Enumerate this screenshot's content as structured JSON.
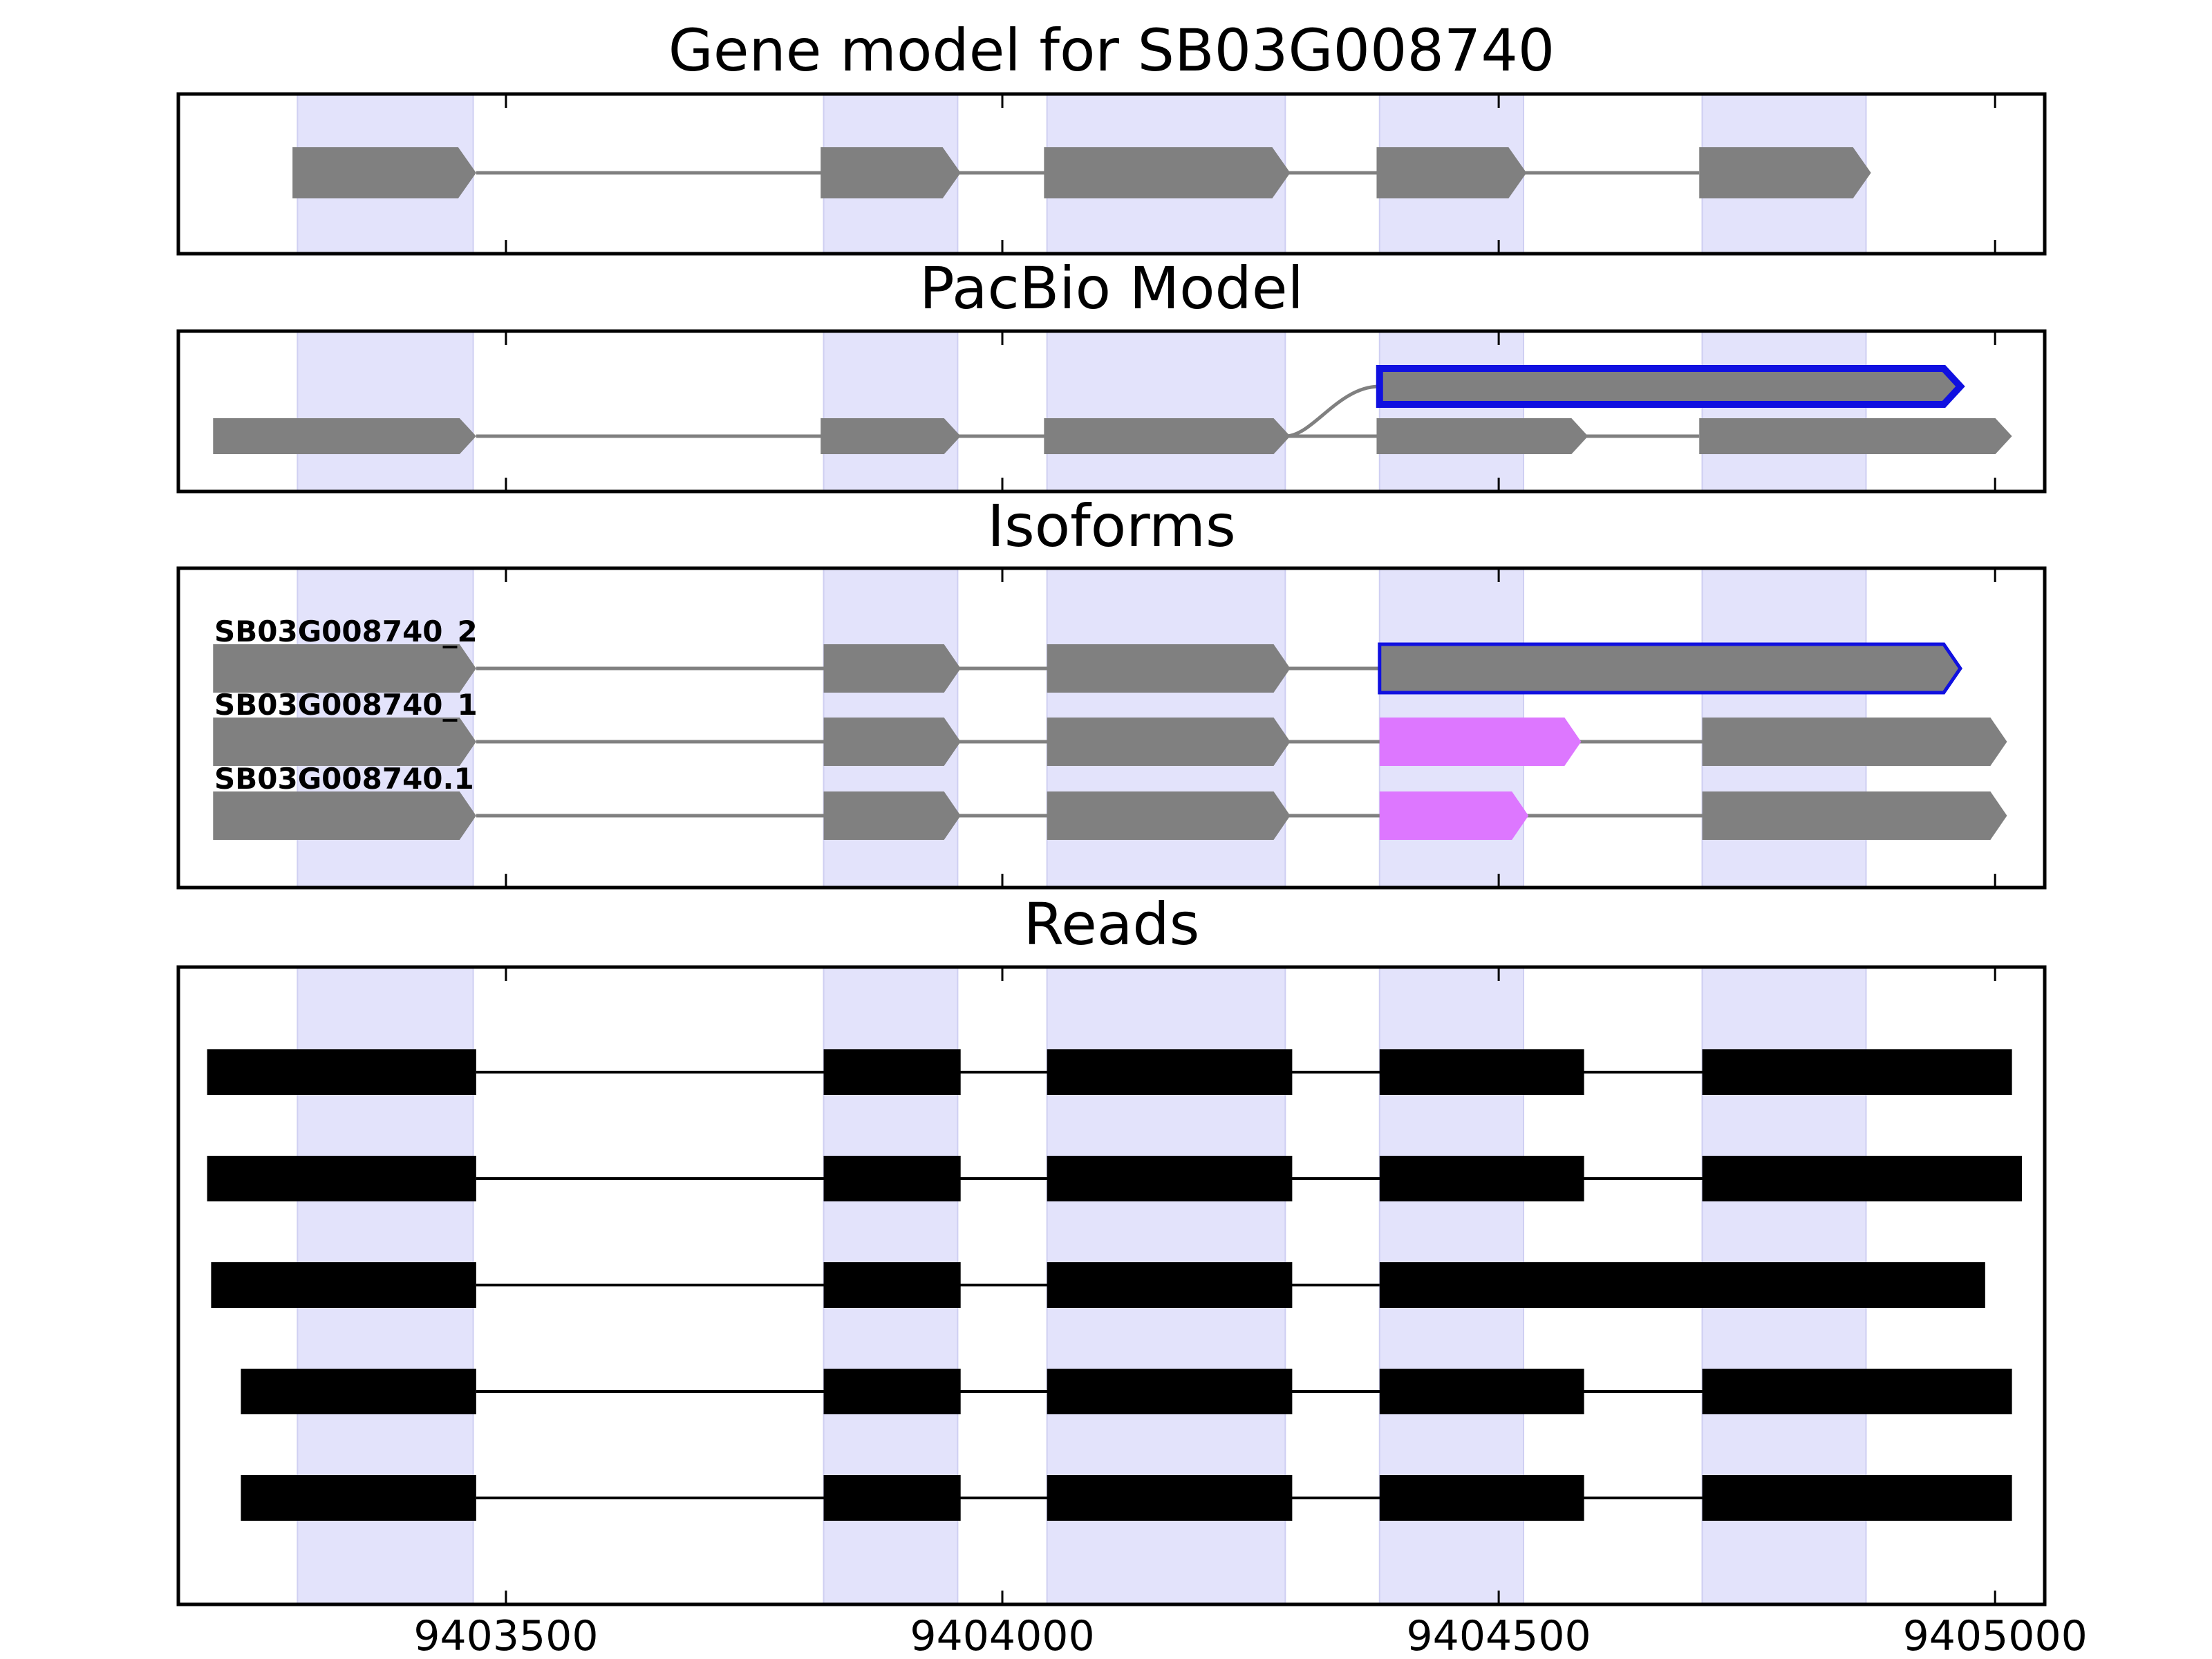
{
  "colors": {
    "exon_band": "#e3e3fb",
    "exon": "#808080",
    "intron": "#808080",
    "highlight_outline": "#1010e0",
    "alt_exon": "#dd77ff",
    "read": "#000000"
  },
  "x_axis": {
    "min": 9403170,
    "max": 9405050,
    "ticks": [
      9403500,
      9404000,
      9404500,
      9405000
    ],
    "tick_labels": [
      "9403500",
      "9404000",
      "9404500",
      "9405000"
    ]
  },
  "exon_bands": [
    [
      9403290,
      9403467
    ],
    [
      9403820,
      9403955
    ],
    [
      9404045,
      9404285
    ],
    [
      9404380,
      9404525
    ],
    [
      9404705,
      9404870
    ]
  ],
  "panels": [
    {
      "id": "gene-model",
      "title": "Gene model for SB03G008740",
      "rows": 1,
      "tracks": [
        {
          "label": "",
          "exons": [
            [
              9403285,
              9403470
            ],
            [
              9403817,
              9403958
            ],
            [
              9404042,
              9404290
            ],
            [
              9404377,
              9404528
            ],
            [
              9404702,
              9404875
            ]
          ]
        }
      ]
    },
    {
      "id": "pacbio-model",
      "title": "PacBio Model",
      "rows": 2,
      "tracks": [
        {
          "label": "",
          "row": 0,
          "highlight": true,
          "branch_from": 9404285,
          "exons": [
            [
              9404380,
              9404965
            ]
          ]
        },
        {
          "label": "",
          "row": 1,
          "exons": [
            [
              9403205,
              9403470
            ],
            [
              9403817,
              9403958
            ],
            [
              9404042,
              9404290
            ],
            [
              9404377,
              9404590
            ],
            [
              9404702,
              9405017
            ]
          ]
        }
      ]
    },
    {
      "id": "isoforms",
      "title": "Isoforms",
      "rows": 3,
      "tracks": [
        {
          "label": "SB03G008740_2",
          "row": 0,
          "exons": [
            [
              9403205,
              9403470
            ],
            [
              9403820,
              9403958
            ],
            [
              9404045,
              9404290
            ],
            [
              9404380,
              9404965
            ]
          ],
          "highlight_exon": 3
        },
        {
          "label": "SB03G008740_1",
          "row": 1,
          "exons": [
            [
              9403205,
              9403470
            ],
            [
              9403820,
              9403958
            ],
            [
              9404045,
              9404290
            ],
            [
              9404380,
              9404583
            ],
            [
              9404705,
              9405012
            ]
          ],
          "alt_exon": 3
        },
        {
          "label": "SB03G008740.1",
          "row": 2,
          "exons": [
            [
              9403205,
              9403470
            ],
            [
              9403820,
              9403958
            ],
            [
              9404045,
              9404290
            ],
            [
              9404380,
              9404530
            ],
            [
              9404705,
              9405012
            ]
          ],
          "alt_exon": 3
        }
      ]
    },
    {
      "id": "reads",
      "title": "Reads",
      "rows": 5,
      "tracks": [
        {
          "row": 0,
          "exons": [
            [
              9403199,
              9403470
            ],
            [
              9403820,
              9403958
            ],
            [
              9404045,
              9404292
            ],
            [
              9404380,
              9404586
            ],
            [
              9404705,
              9405017
            ]
          ]
        },
        {
          "row": 1,
          "exons": [
            [
              9403199,
              9403470
            ],
            [
              9403820,
              9403958
            ],
            [
              9404045,
              9404292
            ],
            [
              9404380,
              9404586
            ],
            [
              9404705,
              9405027
            ]
          ]
        },
        {
          "row": 2,
          "exons": [
            [
              9403203,
              9403470
            ],
            [
              9403820,
              9403958
            ],
            [
              9404045,
              9404292
            ],
            [
              9404380,
              9404990
            ]
          ]
        },
        {
          "row": 3,
          "exons": [
            [
              9403233,
              9403470
            ],
            [
              9403820,
              9403958
            ],
            [
              9404045,
              9404292
            ],
            [
              9404380,
              9404586
            ],
            [
              9404705,
              9405017
            ]
          ]
        },
        {
          "row": 4,
          "exons": [
            [
              9403233,
              9403470
            ],
            [
              9403820,
              9403958
            ],
            [
              9404045,
              9404292
            ],
            [
              9404380,
              9404586
            ],
            [
              9404705,
              9405017
            ]
          ]
        }
      ]
    }
  ]
}
